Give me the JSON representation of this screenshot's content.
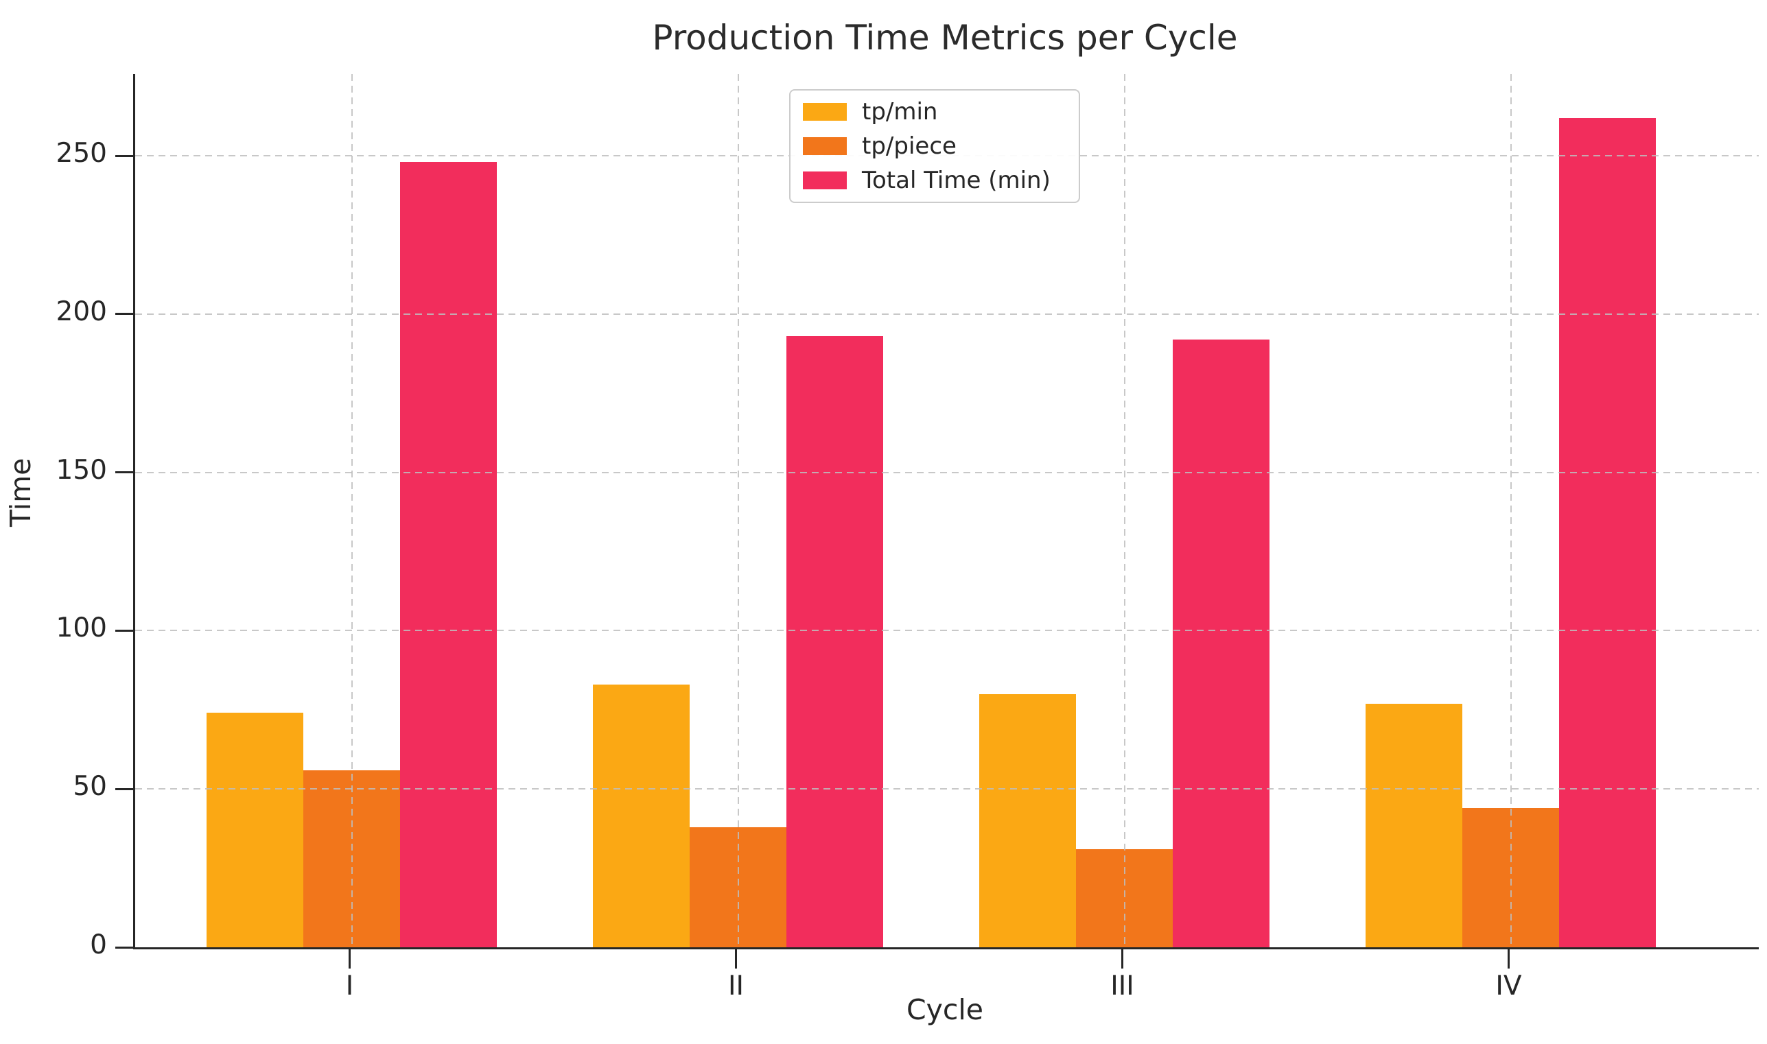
{
  "figure": {
    "title": "Production Time Metrics per Cycle",
    "xlabel": "Cycle",
    "ylabel": "Time"
  },
  "chart_data": {
    "type": "bar",
    "title": "Production Time Metrics per Cycle",
    "xlabel": "Cycle",
    "ylabel": "Time",
    "categories": [
      "I",
      "II",
      "III",
      "IV"
    ],
    "series": [
      {
        "name": "tp/min",
        "color": "#FBA814",
        "values": [
          74,
          83,
          80,
          77
        ]
      },
      {
        "name": "tp/piece",
        "color": "#F2761B",
        "values": [
          56,
          38,
          31,
          44
        ]
      },
      {
        "name": "Total Time (min)",
        "color": "#F22D5C",
        "values": [
          248,
          193,
          192,
          262
        ]
      }
    ],
    "yticks": [
      0,
      50,
      100,
      150,
      200,
      250
    ],
    "ylim": [
      0,
      275.8
    ],
    "grid": true,
    "grid_style": "dashed",
    "legend_position": "upper center",
    "background": "#ffffff",
    "axis_color": "#262626"
  }
}
